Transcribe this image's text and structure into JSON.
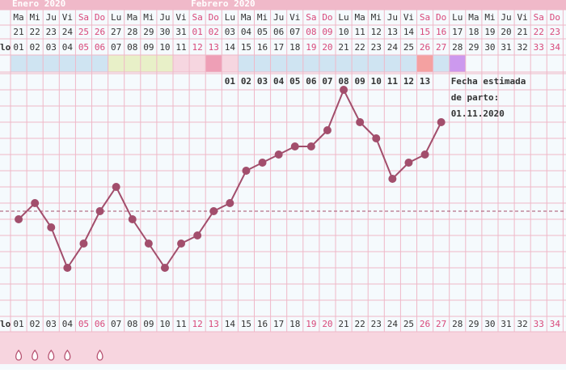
{
  "chart_data": {
    "type": "line",
    "row_label": "lo",
    "months": [
      {
        "label": "Enero 2020",
        "column": 0
      },
      {
        "label": "Febrero 2020",
        "column": 11
      }
    ],
    "weekdays": [
      "Ma",
      "Mi",
      "Ju",
      "Vi",
      "Sa",
      "Do",
      "Lu",
      "Ma",
      "Mi",
      "Ju",
      "Vi",
      "Sa",
      "Do",
      "Lu",
      "Ma",
      "Mi",
      "Ju",
      "Vi",
      "Sa",
      "Do",
      "Lu",
      "Ma",
      "Mi",
      "Ju",
      "Vi",
      "Sa",
      "Do",
      "Lu",
      "Ma",
      "Mi",
      "Ju",
      "Vi",
      "Sa",
      "Do"
    ],
    "dates": [
      "21",
      "22",
      "23",
      "24",
      "25",
      "26",
      "27",
      "28",
      "29",
      "30",
      "31",
      "01",
      "02",
      "03",
      "04",
      "05",
      "06",
      "07",
      "08",
      "09",
      "10",
      "11",
      "12",
      "13",
      "14",
      "15",
      "16",
      "17",
      "18",
      "19",
      "20",
      "21",
      "22",
      "23"
    ],
    "categories": [
      "01",
      "02",
      "03",
      "04",
      "05",
      "06",
      "07",
      "08",
      "09",
      "10",
      "11",
      "12",
      "13",
      "14",
      "15",
      "16",
      "17",
      "18",
      "19",
      "20",
      "21",
      "22",
      "23",
      "24",
      "25",
      "26",
      "27",
      "28",
      "29",
      "30",
      "31",
      "32",
      "33",
      "34"
    ],
    "weekend_columns": [
      4,
      5,
      11,
      12,
      18,
      19,
      25,
      26,
      32,
      33
    ],
    "day_colors": [
      "#cfe4f2",
      "#cfe4f2",
      "#cfe4f2",
      "#cfe4f2",
      "#cfe4f2",
      "#cfe4f2",
      "#e8f0c8",
      "#e8f0c8",
      "#e8f0c8",
      "#e8f0c8",
      "#f6d6e0",
      "#f6d6e0",
      "#ee9fb6",
      "#f6d6e0",
      "#cfe4f2",
      "#cfe4f2",
      "#cfe4f2",
      "#cfe4f2",
      "#cfe4f2",
      "#cfe4f2",
      "#cfe4f2",
      "#cfe4f2",
      "#cfe4f2",
      "#cfe4f2",
      "#cfe4f2",
      "#f4a1a1",
      "#cfe4f2",
      "#cc99ee",
      null,
      null,
      null,
      null,
      null,
      null
    ],
    "post_ovulation_days": [
      "01",
      "02",
      "03",
      "04",
      "05",
      "06",
      "07",
      "08",
      "09",
      "10",
      "11",
      "12",
      "13"
    ],
    "post_ovulation_start": 13,
    "values": [
      12,
      14,
      11,
      6,
      9,
      13,
      16,
      12,
      9,
      6,
      9,
      10,
      13,
      14,
      18,
      19,
      20,
      21,
      21,
      23,
      28,
      24,
      22,
      17,
      19,
      20,
      24,
      null,
      null,
      null,
      null,
      null,
      null,
      null
    ],
    "color": "#a24e6c",
    "ylim": [
      0,
      30
    ],
    "coverline": 13,
    "annotation": [
      "Fecha estimada",
      "de parto:",
      "01.11.2020"
    ],
    "annotation_column": 27,
    "period": [
      true,
      true,
      true,
      true,
      false,
      true
    ]
  }
}
